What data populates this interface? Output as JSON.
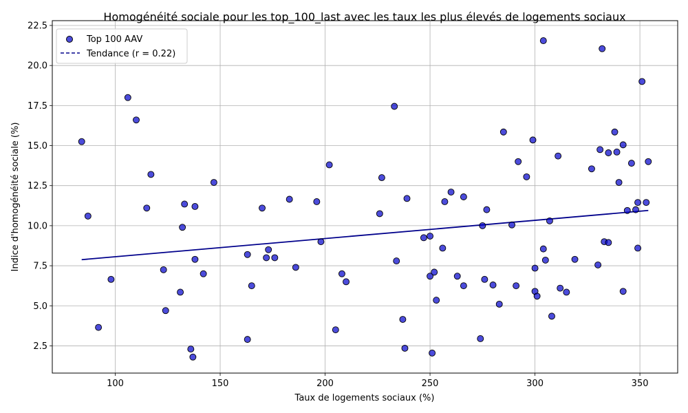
{
  "chart_data": {
    "type": "scatter",
    "title": "Homogénéité sociale pour les top_100_last avec les taux les plus élevés de logements sociaux",
    "xlabel": "Taux de logements sociaux (%)",
    "ylabel": "Indice d'homogénéité sociale (%)",
    "xlim": [
      70,
      368
    ],
    "ylim": [
      0.8,
      22.8
    ],
    "x_ticks": [
      100,
      150,
      200,
      250,
      300,
      350
    ],
    "x_tick_labels": [
      "100",
      "150",
      "200",
      "250",
      "300",
      "350"
    ],
    "y_ticks": [
      2.5,
      5.0,
      7.5,
      10.0,
      12.5,
      15.0,
      17.5,
      20.0,
      22.5
    ],
    "y_tick_labels": [
      "2.5",
      "5.0",
      "7.5",
      "10.0",
      "12.5",
      "15.0",
      "17.5",
      "20.0",
      "22.5"
    ],
    "grid": true,
    "legend_position": "top-left",
    "series": [
      {
        "name": "Top 100 AAV",
        "kind": "scatter",
        "color": "#0000cc",
        "points": [
          [
            84,
            15.25
          ],
          [
            87,
            10.6
          ],
          [
            92,
            3.65
          ],
          [
            98,
            6.65
          ],
          [
            106,
            18.0
          ],
          [
            110,
            16.6
          ],
          [
            115,
            11.1
          ],
          [
            117,
            13.2
          ],
          [
            123,
            7.25
          ],
          [
            124,
            4.7
          ],
          [
            131,
            5.85
          ],
          [
            132,
            9.9
          ],
          [
            133,
            11.35
          ],
          [
            136,
            2.3
          ],
          [
            137,
            1.8
          ],
          [
            138,
            7.9
          ],
          [
            138,
            11.2
          ],
          [
            142,
            7.0
          ],
          [
            147,
            12.7
          ],
          [
            163,
            8.2
          ],
          [
            163,
            2.9
          ],
          [
            165,
            6.25
          ],
          [
            170,
            11.1
          ],
          [
            172,
            8.0
          ],
          [
            173,
            8.5
          ],
          [
            176,
            8.0
          ],
          [
            183,
            11.65
          ],
          [
            186,
            7.4
          ],
          [
            196,
            11.5
          ],
          [
            198,
            9.0
          ],
          [
            202,
            13.8
          ],
          [
            205,
            3.5
          ],
          [
            208,
            7.0
          ],
          [
            210,
            6.5
          ],
          [
            226,
            10.75
          ],
          [
            227,
            13.0
          ],
          [
            233,
            17.45
          ],
          [
            234,
            7.8
          ],
          [
            237,
            4.15
          ],
          [
            238,
            2.35
          ],
          [
            239,
            11.7
          ],
          [
            247,
            9.25
          ],
          [
            250,
            9.35
          ],
          [
            250,
            6.85
          ],
          [
            251,
            2.05
          ],
          [
            252,
            7.1
          ],
          [
            253,
            5.35
          ],
          [
            256,
            8.6
          ],
          [
            257,
            11.5
          ],
          [
            260,
            12.1
          ],
          [
            263,
            6.85
          ],
          [
            266,
            11.8
          ],
          [
            266,
            6.25
          ],
          [
            274,
            2.95
          ],
          [
            275,
            10.0
          ],
          [
            276,
            6.65
          ],
          [
            277,
            11.0
          ],
          [
            280,
            6.3
          ],
          [
            283,
            5.1
          ],
          [
            285,
            15.85
          ],
          [
            289,
            10.05
          ],
          [
            291,
            6.25
          ],
          [
            292,
            14.0
          ],
          [
            296,
            13.05
          ],
          [
            299,
            15.35
          ],
          [
            300,
            7.35
          ],
          [
            300,
            5.9
          ],
          [
            301,
            5.6
          ],
          [
            304,
            21.55
          ],
          [
            304,
            8.55
          ],
          [
            305,
            7.85
          ],
          [
            307,
            10.3
          ],
          [
            308,
            4.35
          ],
          [
            311,
            14.35
          ],
          [
            312,
            6.1
          ],
          [
            315,
            5.85
          ],
          [
            319,
            7.9
          ],
          [
            327,
            13.55
          ],
          [
            330,
            7.55
          ],
          [
            331,
            14.75
          ],
          [
            332,
            21.05
          ],
          [
            333,
            9.0
          ],
          [
            335,
            14.55
          ],
          [
            335,
            8.95
          ],
          [
            338,
            15.85
          ],
          [
            339,
            14.6
          ],
          [
            340,
            12.7
          ],
          [
            342,
            15.05
          ],
          [
            342,
            5.9
          ],
          [
            344,
            10.95
          ],
          [
            346,
            13.9
          ],
          [
            348,
            11.0
          ],
          [
            349,
            11.45
          ],
          [
            349,
            8.6
          ],
          [
            351,
            19.0
          ],
          [
            353,
            11.45
          ],
          [
            354,
            14.0
          ]
        ]
      },
      {
        "name": "Tendance (r = 0.22)",
        "kind": "line",
        "style": "dashed",
        "color": "#00008b",
        "x": [
          84,
          354
        ],
        "y": [
          7.88,
          10.95
        ]
      }
    ]
  }
}
